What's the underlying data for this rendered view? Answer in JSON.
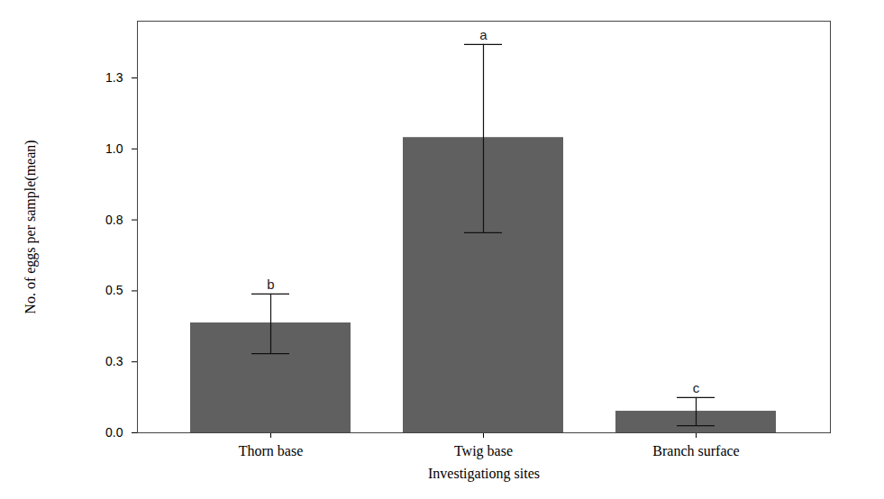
{
  "chart_data": {
    "type": "bar",
    "x_label": "Investigationg sites",
    "y_label": "No. of eggs per sample(mean)",
    "categories": [
      "Thorn base",
      "Twig base",
      "Branch surface"
    ],
    "values": [
      0.387,
      1.04,
      0.076
    ],
    "error_low": [
      0.279,
      0.705,
      0.025
    ],
    "error_high": [
      0.489,
      1.368,
      0.124
    ],
    "annotations": [
      {
        "category": "Thorn base",
        "text": "b"
      },
      {
        "category": "Twig base",
        "text": "a"
      },
      {
        "category": "Branch surface",
        "text": "c"
      }
    ],
    "color": "#606060",
    "ylim": [
      0,
      1.45
    ],
    "yticks": [
      {
        "value": 0,
        "label": "0.0"
      },
      {
        "value": 0.25,
        "label": "0.3"
      },
      {
        "value": 0.5,
        "label": "0.5"
      },
      {
        "value": 0.75,
        "label": "0.8"
      },
      {
        "value": 1.0,
        "label": "1.0"
      },
      {
        "value": 1.25,
        "label": "1.3"
      }
    ],
    "grid": false
  }
}
